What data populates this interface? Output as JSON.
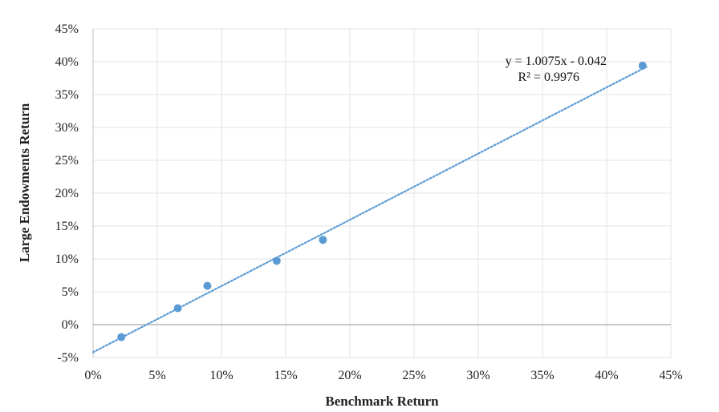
{
  "chart_data": {
    "type": "scatter",
    "xlabel": "Benchmark Return",
    "ylabel": "Large Endowments Return",
    "xlim": [
      0,
      45
    ],
    "ylim": [
      -5,
      45
    ],
    "x_ticks": [
      "0%",
      "5%",
      "10%",
      "15%",
      "20%",
      "25%",
      "30%",
      "35%",
      "40%",
      "45%"
    ],
    "y_ticks": [
      "-5%",
      "0%",
      "5%",
      "10%",
      "15%",
      "20%",
      "25%",
      "30%",
      "35%",
      "40%",
      "45%"
    ],
    "grid": true,
    "points": [
      {
        "x": 2.2,
        "y": -1.9
      },
      {
        "x": 6.6,
        "y": 2.5
      },
      {
        "x": 8.9,
        "y": 5.9
      },
      {
        "x": 14.3,
        "y": 9.7
      },
      {
        "x": 17.9,
        "y": 12.9
      },
      {
        "x": 42.8,
        "y": 39.4
      }
    ],
    "trendline": {
      "type": "linear",
      "slope": 1.0075,
      "intercept": -0.042,
      "equation": "y = 1.0075x - 0.042",
      "r_squared": "R² = 0.9976"
    },
    "colors": {
      "points": "#5b9bd5",
      "trendline": "#5b9bd5",
      "grid": "#e3e3e3",
      "zero_line": "#a6a6a6",
      "axis": "#bfbfbf"
    }
  }
}
